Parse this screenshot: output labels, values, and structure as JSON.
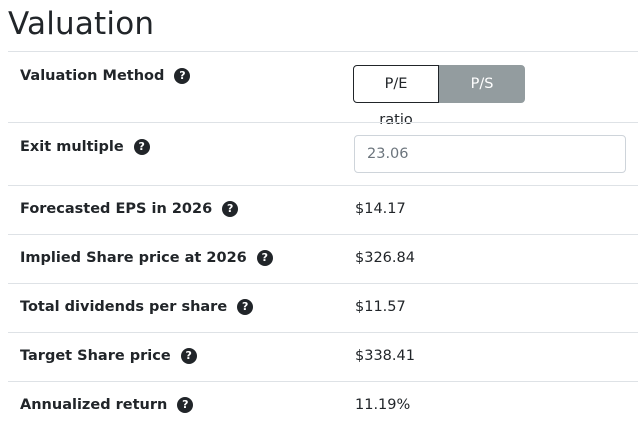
{
  "page_title": "Valuation",
  "help_glyph": "?",
  "rows": {
    "valuation_method": {
      "label": "Valuation Method",
      "options": [
        "P/E ratio",
        "P/S ratio"
      ],
      "selected": "P/E ratio"
    },
    "exit_multiple": {
      "label": "Exit multiple",
      "value": "23.06"
    },
    "forecasted_eps": {
      "label": "Forecasted EPS in 2026",
      "value": "$14.17"
    },
    "implied_share_price": {
      "label": "Implied Share price at 2026",
      "value": "$326.84"
    },
    "total_dividends": {
      "label": "Total dividends per share",
      "value": "$11.57"
    },
    "target_share_price": {
      "label": "Target Share price",
      "value": "$338.41"
    },
    "annualized_return": {
      "label": "Annualized return",
      "value": "11.19%"
    }
  },
  "colors": {
    "text": "#212529",
    "border": "#dee2e6",
    "inactive_button": "#939c9f",
    "input_text": "#6c757d"
  }
}
